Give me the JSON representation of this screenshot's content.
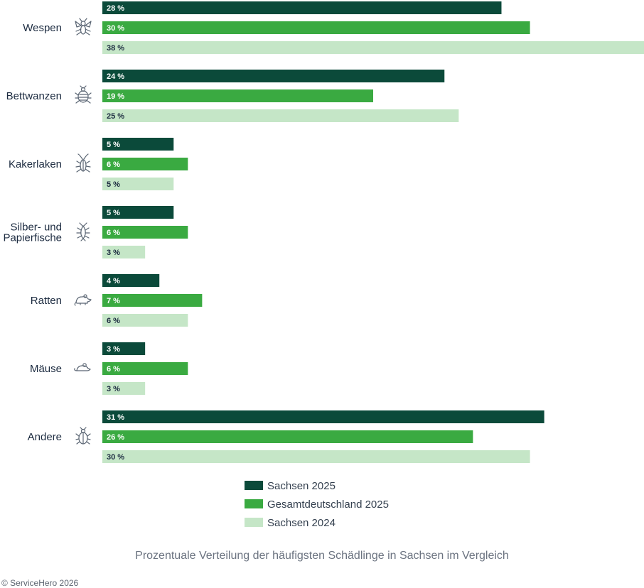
{
  "chart_data": {
    "type": "bar",
    "orientation": "horizontal",
    "unit_suffix": " %",
    "categories": [
      "Wespen",
      "Bettwanzen",
      "Kakerlaken",
      "Silber- und Papierfische",
      "Ratten",
      "Mäuse",
      "Andere"
    ],
    "category_lines": [
      [
        "Wespen"
      ],
      [
        "Bettwanzen"
      ],
      [
        "Kakerlaken"
      ],
      [
        "Silber- und",
        "Papierfische"
      ],
      [
        "Ratten"
      ],
      [
        "Mäuse"
      ],
      [
        "Andere"
      ]
    ],
    "category_icons": [
      "wasp-icon",
      "bedbug-icon",
      "cockroach-icon",
      "silverfish-icon",
      "rat-icon",
      "mouse-icon",
      "beetle-icon"
    ],
    "series": [
      {
        "name": "Sachsen 2025",
        "color": "#0b4a3a",
        "label_color": "#ffffff",
        "values": [
          28,
          24,
          5,
          5,
          4,
          3,
          31
        ]
      },
      {
        "name": "Gesamtdeutschland 2025",
        "color": "#3aaa41",
        "label_color": "#ffffff",
        "values": [
          30,
          19,
          6,
          6,
          7,
          6,
          26
        ]
      },
      {
        "name": "Sachsen 2024",
        "color": "#c5e6c7",
        "label_color": "#1c2b40",
        "values": [
          38,
          25,
          5,
          3,
          6,
          3,
          30
        ]
      }
    ],
    "xlim": [
      0,
      38
    ],
    "grid": false,
    "legend_position": "bottom-center",
    "title": "Prozentuale Verteilung der häufigsten Schädlinge in Sachsen im Vergleich"
  },
  "footer": {
    "caption": "Prozentuale Verteilung der häufigsten Schädlinge in Sachsen im Vergleich",
    "copyright": "© ServiceHero 2026"
  }
}
